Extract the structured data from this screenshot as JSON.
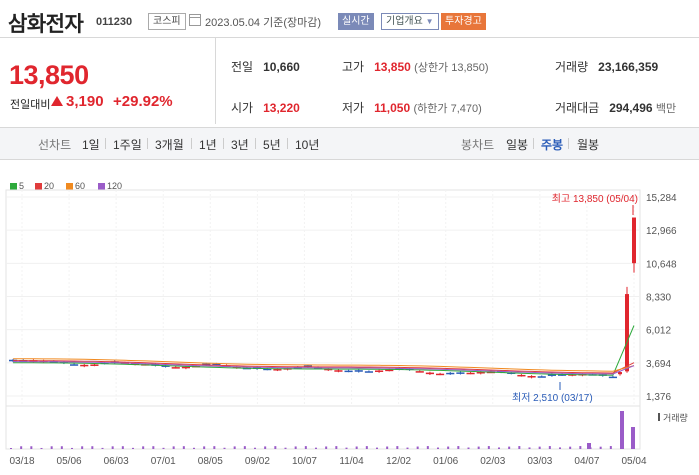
{
  "header": {
    "name": "삼화전자",
    "code": "011230",
    "market": "코스피",
    "date": "2023.05.04 기준(장마감)",
    "buttons": {
      "realtime": "실시간",
      "company": "기업개요",
      "warning": "투자경고"
    }
  },
  "quote": {
    "price": "13,850",
    "change_label": "전일대비",
    "change_value": "3,190",
    "change_rate": "+29.92%"
  },
  "stats": {
    "prev_label": "전일",
    "prev_value": "10,660",
    "high_label": "고가",
    "high_value": "13,850",
    "high_sub": "(상한가 13,850)",
    "volume_label": "거래량",
    "volume_value": "23,166,359",
    "open_label": "시가",
    "open_value": "13,220",
    "low_label": "저가",
    "low_value": "11,050",
    "low_sub": "(하한가 7,470)",
    "amount_label": "거래대금",
    "amount_value": "294,496",
    "amount_unit": "백만"
  },
  "periods": {
    "line_label": "선차트",
    "items": [
      "1일",
      "1주일",
      "3개월",
      "1년",
      "3년",
      "5년",
      "10년"
    ],
    "candle_label": "봉차트",
    "candles": [
      "일봉",
      "주봉",
      "월봉"
    ],
    "selected": "주봉"
  },
  "legend": [
    {
      "label": "5",
      "color": "#2eaa3c"
    },
    {
      "label": "20",
      "color": "#e03c3c"
    },
    {
      "label": "60",
      "color": "#f08a20"
    },
    {
      "label": "120",
      "color": "#9a5cc8"
    }
  ],
  "chart_data": {
    "type": "candlestick",
    "y_ticks": [
      "15,284",
      "12,966",
      "10,648",
      "8,330",
      "6,012",
      "3,694",
      "1,376"
    ],
    "y_range": [
      1376,
      15284
    ],
    "x_ticks": [
      "03/18",
      "05/06",
      "06/03",
      "07/01",
      "08/05",
      "09/02",
      "10/07",
      "11/04",
      "12/02",
      "01/06",
      "02/03",
      "03/03",
      "04/07",
      "05/04"
    ],
    "annotation_high": "최고 13,850 (05/04)",
    "annotation_low": "최저 2,510 (03/17)",
    "volume_label": "거래량",
    "last_candles": [
      {
        "open": 2900,
        "high": 3100,
        "low": 2800,
        "close": 3050
      },
      {
        "open": 3100,
        "high": 9000,
        "low": 3000,
        "close": 8500
      },
      {
        "open": 10660,
        "high": 13850,
        "low": 10000,
        "close": 13850
      }
    ]
  }
}
